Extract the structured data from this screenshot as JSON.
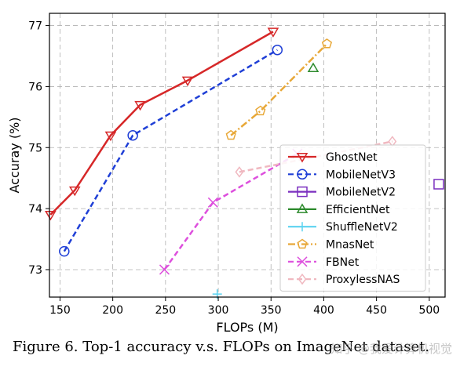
{
  "chart_data": {
    "type": "line",
    "title": "",
    "xlabel": "FLOPs (M)",
    "ylabel": "Accuray (%)",
    "xlim": [
      140,
      515
    ],
    "ylim": [
      72.55,
      77.2
    ],
    "xticks": [
      150,
      200,
      250,
      300,
      350,
      400,
      450,
      500
    ],
    "yticks": [
      73,
      74,
      75,
      76,
      77
    ],
    "grid": true,
    "legend_position": "bottom-right",
    "series": [
      {
        "name": "GhostNet",
        "color": "#d62728",
        "style": "solid",
        "marker": "triangle-down",
        "x": [
          141,
          164,
          198,
          226,
          271,
          352
        ],
        "y": [
          73.9,
          74.3,
          75.2,
          75.7,
          76.1,
          76.9
        ]
      },
      {
        "name": "MobileNetV3",
        "color": "#1f3fd6",
        "style": "dashed",
        "marker": "circle",
        "x": [
          154,
          219,
          356
        ],
        "y": [
          73.3,
          75.2,
          76.6
        ]
      },
      {
        "name": "MobileNetV2",
        "color": "#7b2fbf",
        "style": "none",
        "marker": "square",
        "x": [
          509
        ],
        "y": [
          74.4
        ]
      },
      {
        "name": "EfficientNet",
        "color": "#2c8a2c",
        "style": "none",
        "marker": "triangle-up",
        "x": [
          390
        ],
        "y": [
          76.3
        ]
      },
      {
        "name": "ShuffleNetV2",
        "color": "#5bd3f0",
        "style": "none",
        "marker": "plus",
        "x": [
          299
        ],
        "y": [
          72.6
        ]
      },
      {
        "name": "MnasNet",
        "color": "#e8a838",
        "style": "dashdot",
        "marker": "pentagon",
        "x": [
          312,
          340,
          403
        ],
        "y": [
          75.2,
          75.6,
          76.7
        ]
      },
      {
        "name": "FBNet",
        "color": "#dd4fdd",
        "style": "dashed",
        "marker": "x",
        "x": [
          249,
          295,
          375
        ],
        "y": [
          73.0,
          74.1,
          74.9
        ]
      },
      {
        "name": "ProxylessNAS",
        "color": "#f0b8c0",
        "style": "dashed",
        "marker": "diamond",
        "x": [
          320,
          465
        ],
        "y": [
          74.6,
          75.1
        ]
      }
    ]
  },
  "caption": "Figure 6. Top-1 accuracy v.s. FLOPs on ImageNet dataset.",
  "watermark": "知乎 @我爱计算机视觉"
}
